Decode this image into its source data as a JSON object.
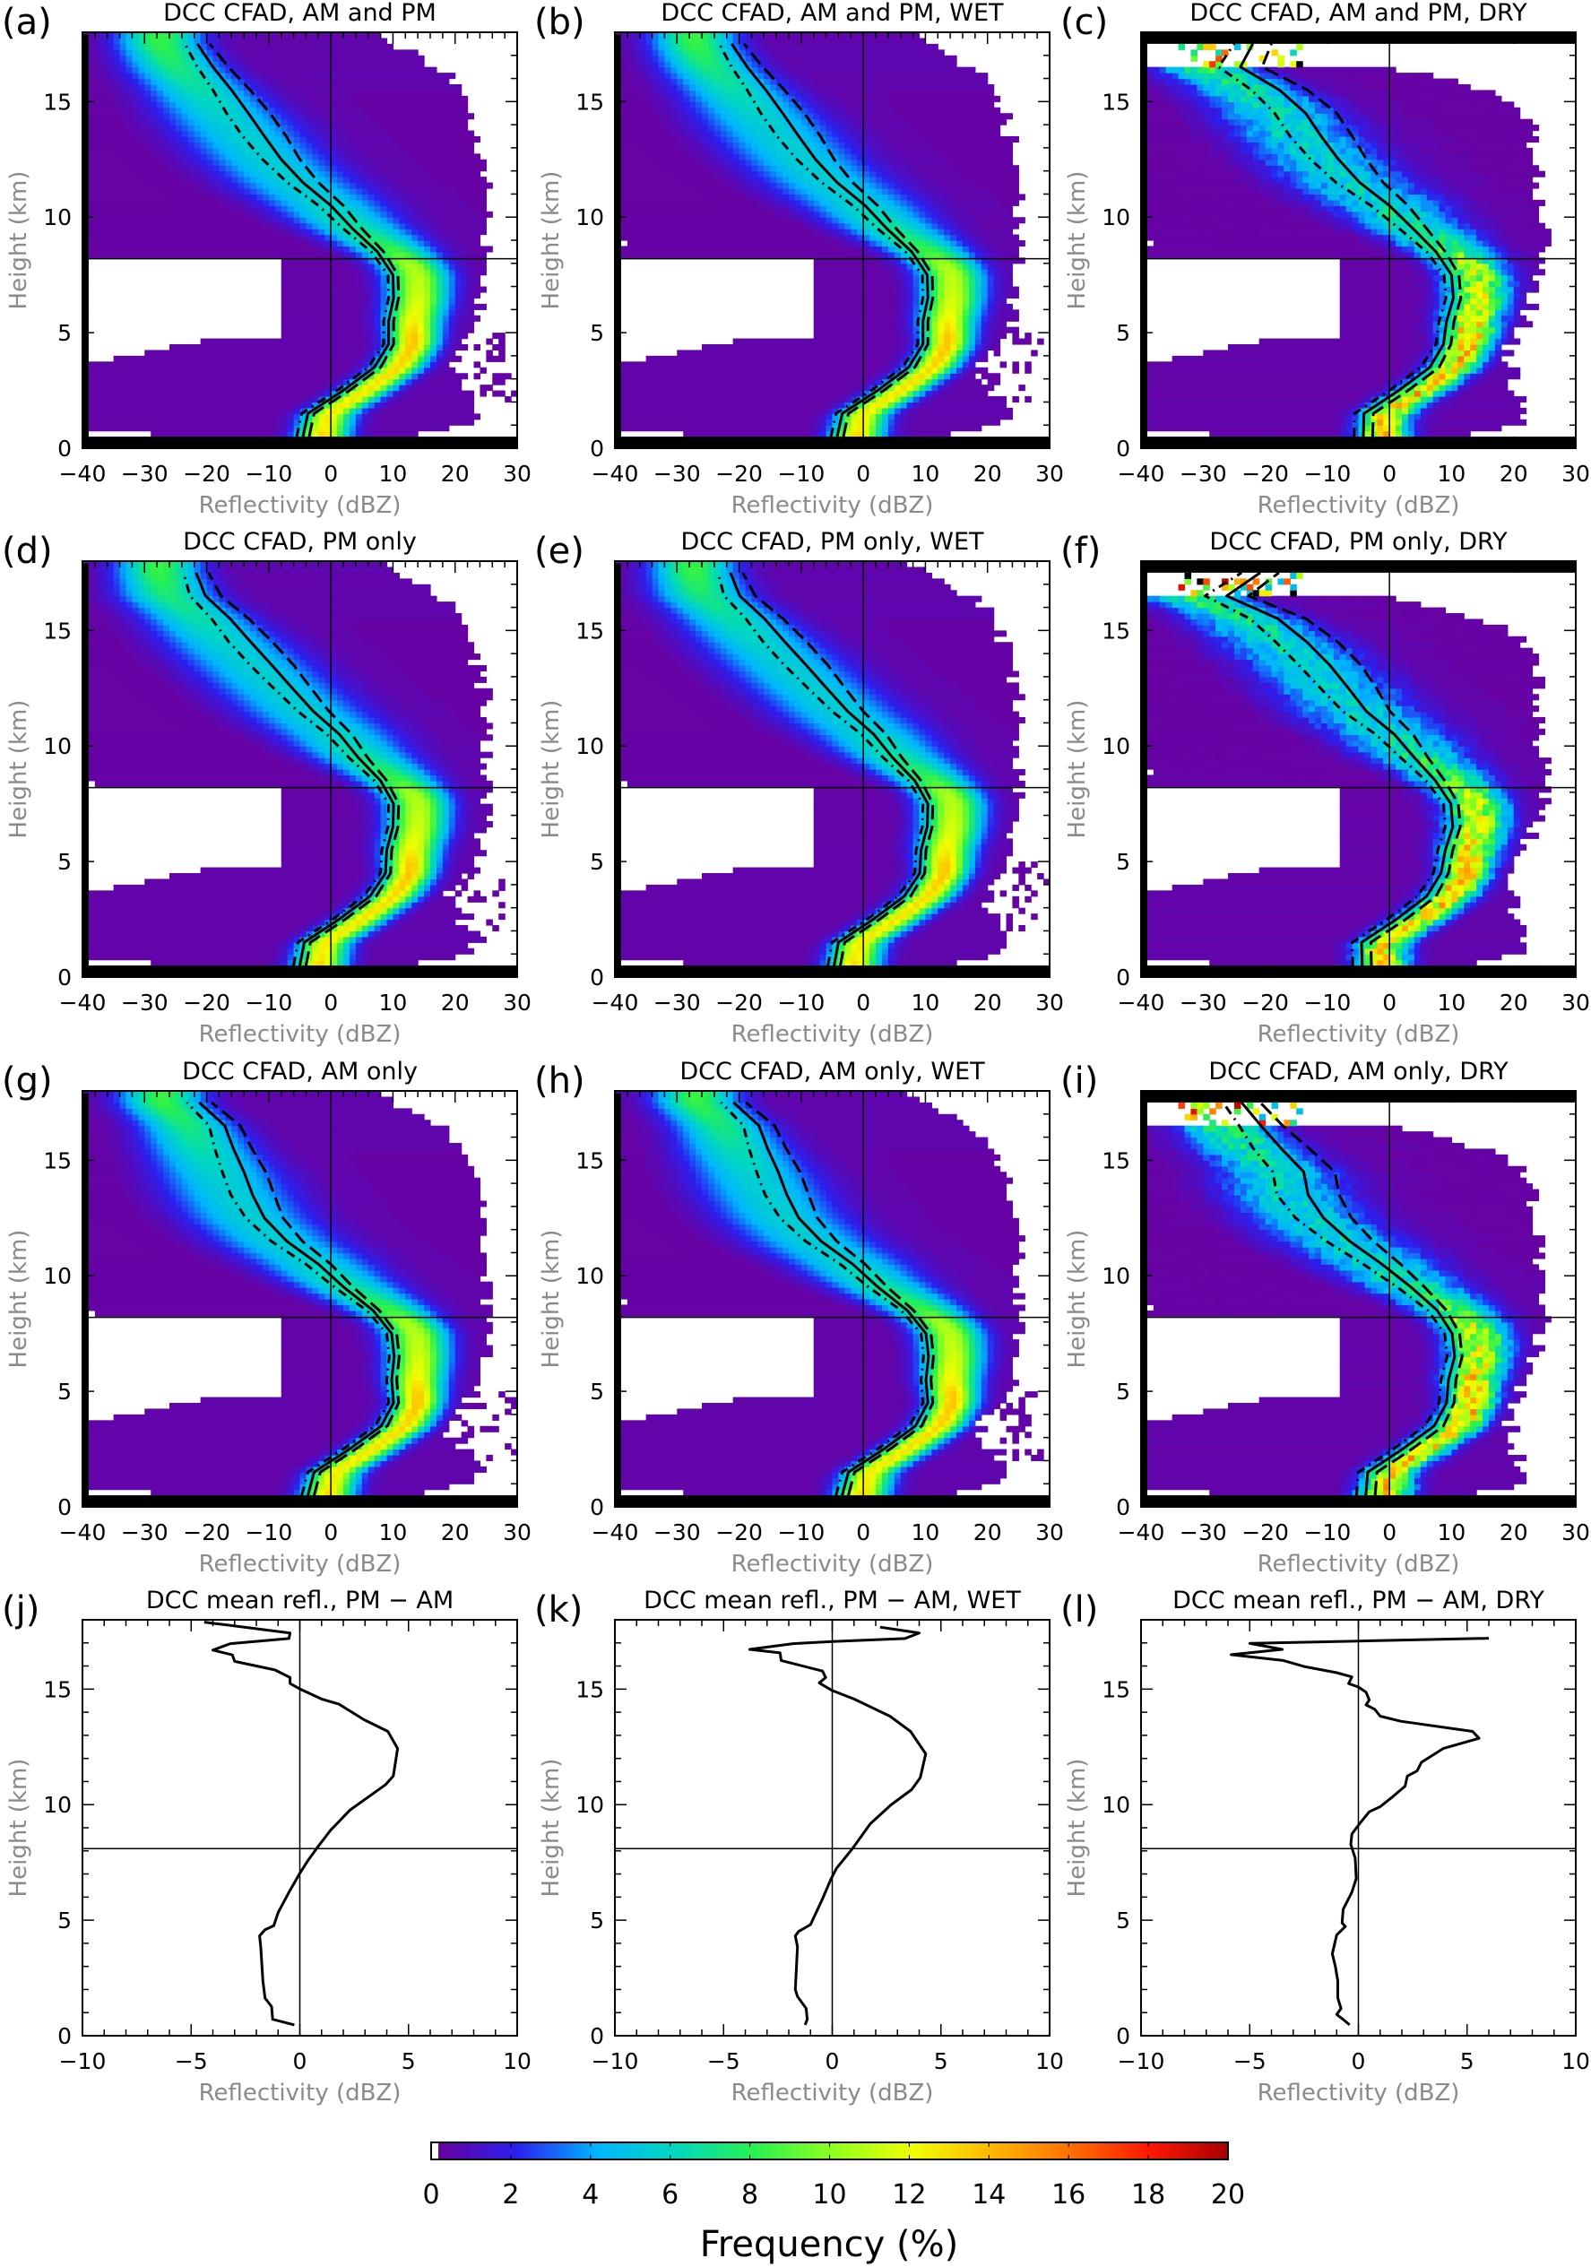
{
  "colorbar": {
    "label": "Frequency (%)",
    "range": [
      0,
      20
    ],
    "ticks": [
      0,
      2,
      4,
      6,
      8,
      10,
      12,
      14,
      16,
      18,
      20
    ],
    "colors": [
      "#6a00a0",
      "#2a20f0",
      "#00b4ff",
      "#00d8c0",
      "#28f050",
      "#90ff20",
      "#f0ff00",
      "#ffb800",
      "#ff7000",
      "#ff1800",
      "#a80000"
    ]
  },
  "chart_data": [
    {
      "id": "a",
      "label": "(a)",
      "type": "heatmap",
      "title": "DCC CFAD, AM and PM",
      "xlabel": "Reflectivity (dBZ)",
      "ylabel": "Height (km)",
      "xlim": [
        -40,
        30
      ],
      "ylim": [
        0,
        18
      ],
      "xticks": [
        -40,
        -30,
        -20,
        -10,
        0,
        10,
        20,
        30
      ],
      "yticks": [
        0,
        5,
        10,
        15
      ],
      "reference_lines": {
        "x": 0,
        "y": 8.2
      },
      "mean_profile": {
        "height_km": [
          0.5,
          1.5,
          2.5,
          3.5,
          4.5,
          5.5,
          6.5,
          7.5,
          8.5,
          9.5,
          10.5,
          11.5,
          12.5,
          13.5,
          14.5,
          15.5,
          16.5,
          17.5
        ],
        "reflectivity_dbz": [
          -4.5,
          -3.7,
          2,
          7,
          9.3,
          9.3,
          10.1,
          10,
          7.5,
          3.5,
          0,
          -4.5,
          -8,
          -10.7,
          -13.3,
          -16,
          -19,
          -21.5
        ]
      },
      "bound_halfwidth_dbz": [
        1,
        1,
        1,
        1,
        0.8,
        0.8,
        0.8,
        0.8,
        1,
        1.5,
        2,
        2.5,
        3,
        3.5,
        3.5,
        3,
        2.5,
        2
      ]
    },
    {
      "id": "b",
      "label": "(b)",
      "type": "heatmap",
      "title": "DCC CFAD, AM and PM, WET",
      "xlabel": "Reflectivity (dBZ)",
      "ylabel": "Height (km)",
      "xlim": [
        -40,
        30
      ],
      "ylim": [
        0,
        18
      ],
      "xticks": [
        -40,
        -30,
        -20,
        -10,
        0,
        10,
        20,
        30
      ],
      "yticks": [
        0,
        5,
        10,
        15
      ],
      "reference_lines": {
        "x": 0,
        "y": 8.2
      },
      "mean_profile": {
        "height_km": [
          0.5,
          1.5,
          2.5,
          3.5,
          4.5,
          5.5,
          6.5,
          7.5,
          8.5,
          9.5,
          10.5,
          11.5,
          12.5,
          13.5,
          14.5,
          15.5,
          16.5,
          17.5
        ],
        "reflectivity_dbz": [
          -4.2,
          -3.4,
          2.3,
          7.3,
          9.6,
          9.6,
          10.4,
          10.3,
          7.8,
          3.8,
          0.3,
          -4.2,
          -7.7,
          -10.4,
          -13.0,
          -15.7,
          -18.7,
          -21.2
        ]
      },
      "bound_halfwidth_dbz": [
        1,
        1,
        1,
        1,
        0.8,
        0.8,
        0.8,
        0.8,
        1,
        1.5,
        2,
        2.5,
        3,
        3.5,
        3.5,
        3,
        2.5,
        2
      ]
    },
    {
      "id": "c",
      "label": "(c)",
      "type": "heatmap",
      "title": "DCC CFAD, AM and PM, DRY",
      "xlabel": "Reflectivity (dBZ)",
      "ylabel": "Height (km)",
      "xlim": [
        -40,
        30
      ],
      "ylim": [
        0,
        18
      ],
      "xticks": [
        -40,
        -30,
        -20,
        -10,
        0,
        10,
        20,
        30
      ],
      "yticks": [
        0,
        5,
        10,
        15
      ],
      "reference_lines": {
        "x": 0,
        "y": 8.2
      },
      "mean_profile": {
        "height_km": [
          0.5,
          1.5,
          2.5,
          3.5,
          4.5,
          5.5,
          6.5,
          7.5,
          8.5,
          9.5,
          10.5,
          11.5,
          12.5,
          13.5,
          14.5,
          15.5,
          16.5,
          17.5
        ],
        "reflectivity_dbz": [
          -4.2,
          -4.1,
          1.5,
          6.5,
          8.7,
          9.2,
          10.3,
          10,
          7.5,
          3.8,
          0,
          -4.8,
          -8.2,
          -11,
          -13.5,
          -17.7,
          -24,
          -22
        ]
      },
      "bound_halfwidth_dbz": [
        1.5,
        1.5,
        1.5,
        1.5,
        1.2,
        1.2,
        1.2,
        1.2,
        1.5,
        2.2,
        3,
        3.8,
        4.5,
        5,
        5,
        4.5,
        3.5,
        3
      ]
    },
    {
      "id": "d",
      "label": "(d)",
      "type": "heatmap",
      "title": "DCC CFAD, PM only",
      "xlabel": "Reflectivity (dBZ)",
      "ylabel": "Height (km)",
      "xlim": [
        -40,
        30
      ],
      "ylim": [
        0,
        18
      ],
      "xticks": [
        -40,
        -30,
        -20,
        -10,
        0,
        10,
        20,
        30
      ],
      "yticks": [
        0,
        5,
        10,
        15
      ],
      "reference_lines": {
        "x": 0,
        "y": 8.2
      },
      "mean_profile": {
        "height_km": [
          0.5,
          1.5,
          2.5,
          3.5,
          4.5,
          5.5,
          6.5,
          7.5,
          8.5,
          9.5,
          10.5,
          11.5,
          12.5,
          13.5,
          14.5,
          15.5,
          16.5,
          17.5
        ],
        "reflectivity_dbz": [
          -5.0,
          -4.3,
          1.3,
          6.3,
          8.8,
          9.0,
          10.0,
          10.1,
          8.0,
          4.4,
          1.4,
          -2.8,
          -6.2,
          -9.5,
          -12.9,
          -16.2,
          -20.2,
          -21.7
        ]
      },
      "bound_halfwidth_dbz": [
        1,
        1,
        1,
        1,
        0.8,
        0.8,
        0.8,
        0.8,
        1,
        1.5,
        2,
        2.5,
        3,
        3.5,
        3.5,
        3,
        2.5,
        2
      ]
    },
    {
      "id": "e",
      "label": "(e)",
      "type": "heatmap",
      "title": "DCC CFAD, PM only, WET",
      "xlabel": "Reflectivity (dBZ)",
      "ylabel": "Height (km)",
      "xlim": [
        -40,
        30
      ],
      "ylim": [
        0,
        18
      ],
      "xticks": [
        -40,
        -30,
        -20,
        -10,
        0,
        10,
        20,
        30
      ],
      "yticks": [
        0,
        5,
        10,
        15
      ],
      "reference_lines": {
        "x": 0,
        "y": 8.2
      },
      "mean_profile": {
        "height_km": [
          0.5,
          1.5,
          2.5,
          3.5,
          4.5,
          5.5,
          6.5,
          7.5,
          8.5,
          9.5,
          10.5,
          11.5,
          12.5,
          13.5,
          14.5,
          15.5,
          16.5,
          17.5
        ],
        "reflectivity_dbz": [
          -4.7,
          -4.0,
          1.6,
          6.6,
          9.1,
          9.3,
          10.3,
          10.4,
          8.3,
          4.7,
          1.7,
          -2.5,
          -5.9,
          -9.2,
          -12.6,
          -15.9,
          -19.9,
          -21.4
        ]
      },
      "bound_halfwidth_dbz": [
        1,
        1,
        1,
        1,
        0.8,
        0.8,
        0.8,
        0.8,
        1,
        1.5,
        2,
        2.5,
        3,
        3.5,
        3.5,
        3,
        2.5,
        2
      ]
    },
    {
      "id": "f",
      "label": "(f)",
      "type": "heatmap",
      "title": "DCC CFAD, PM only, DRY",
      "xlabel": "Reflectivity (dBZ)",
      "ylabel": "Height (km)",
      "xlim": [
        -40,
        30
      ],
      "ylim": [
        0,
        18
      ],
      "xticks": [
        -40,
        -30,
        -20,
        -10,
        0,
        10,
        20,
        30
      ],
      "yticks": [
        0,
        5,
        10,
        15
      ],
      "reference_lines": {
        "x": 0,
        "y": 8.2
      },
      "mean_profile": {
        "height_km": [
          0.5,
          1.5,
          2.5,
          3.5,
          4.5,
          5.5,
          6.5,
          7.5,
          8.5,
          9.5,
          10.5,
          11.5,
          12.5,
          13.5,
          14.5,
          15.5,
          16.5,
          17.5
        ],
        "reflectivity_dbz": [
          -4.4,
          -4.5,
          1.1,
          6.0,
          8.3,
          9.0,
          10.2,
          9.9,
          7.4,
          4.0,
          0.8,
          -3.7,
          -6.6,
          -9.6,
          -13.3,
          -17.9,
          -26.2,
          -20.8
        ]
      },
      "bound_halfwidth_dbz": [
        1.5,
        1.5,
        1.5,
        1.5,
        1.2,
        1.2,
        1.2,
        1.2,
        1.5,
        2.2,
        3,
        3.8,
        4.5,
        5,
        5,
        4.5,
        3.5,
        3
      ]
    },
    {
      "id": "g",
      "label": "(g)",
      "type": "heatmap",
      "title": "DCC CFAD, AM only",
      "xlabel": "Reflectivity (dBZ)",
      "ylabel": "Height (km)",
      "xlim": [
        -40,
        30
      ],
      "ylim": [
        0,
        18
      ],
      "xticks": [
        -40,
        -30,
        -20,
        -10,
        0,
        10,
        20,
        30
      ],
      "yticks": [
        0,
        5,
        10,
        15
      ],
      "reference_lines": {
        "x": 0,
        "y": 8.2
      },
      "mean_profile": {
        "height_km": [
          0.5,
          1.5,
          2.5,
          3.5,
          4.5,
          5.5,
          6.5,
          7.5,
          8.5,
          9.5,
          10.5,
          11.5,
          12.5,
          13.5,
          14.5,
          15.5,
          16.5,
          17.5
        ],
        "reflectivity_dbz": [
          -3.7,
          -2.7,
          3.0,
          8.1,
          10.1,
          9.8,
          10.2,
          9.8,
          6.8,
          2.1,
          -2.0,
          -7.1,
          -10.7,
          -12.6,
          -14.0,
          -15.7,
          -17.1,
          -21.2
        ]
      },
      "bound_halfwidth_dbz": [
        1,
        1,
        1,
        1,
        0.8,
        0.8,
        0.8,
        0.8,
        1,
        1.5,
        2,
        2.5,
        3,
        3.5,
        3.5,
        3,
        2.5,
        2
      ]
    },
    {
      "id": "h",
      "label": "(h)",
      "type": "heatmap",
      "title": "DCC CFAD, AM only, WET",
      "xlabel": "Reflectivity (dBZ)",
      "ylabel": "Height (km)",
      "xlim": [
        -40,
        30
      ],
      "ylim": [
        0,
        18
      ],
      "xticks": [
        -40,
        -30,
        -20,
        -10,
        0,
        10,
        20,
        30
      ],
      "yticks": [
        0,
        5,
        10,
        15
      ],
      "reference_lines": {
        "x": 0,
        "y": 8.2
      },
      "mean_profile": {
        "height_km": [
          0.5,
          1.5,
          2.5,
          3.5,
          4.5,
          5.5,
          6.5,
          7.5,
          8.5,
          9.5,
          10.5,
          11.5,
          12.5,
          13.5,
          14.5,
          15.5,
          16.5,
          17.5
        ],
        "reflectivity_dbz": [
          -3.4,
          -2.4,
          3.3,
          8.4,
          10.4,
          10.1,
          10.5,
          10.1,
          7.1,
          2.4,
          -1.7,
          -6.8,
          -10.4,
          -12.3,
          -13.7,
          -15.4,
          -16.8,
          -20.9
        ]
      },
      "bound_halfwidth_dbz": [
        1,
        1,
        1,
        1,
        0.8,
        0.8,
        0.8,
        0.8,
        1,
        1.5,
        2,
        2.5,
        3,
        3.5,
        3.5,
        3,
        2.5,
        2
      ]
    },
    {
      "id": "i",
      "label": "(i)",
      "type": "heatmap",
      "title": "DCC CFAD, AM only, DRY",
      "xlabel": "Reflectivity (dBZ)",
      "ylabel": "Height (km)",
      "xlim": [
        -40,
        30
      ],
      "ylim": [
        0,
        18
      ],
      "xticks": [
        -40,
        -30,
        -20,
        -10,
        0,
        10,
        20,
        30
      ],
      "yticks": [
        0,
        5,
        10,
        15
      ],
      "reference_lines": {
        "x": 0,
        "y": 8.2
      },
      "mean_profile": {
        "height_km": [
          0.5,
          1.5,
          2.5,
          3.5,
          4.5,
          5.5,
          6.5,
          7.5,
          8.5,
          9.5,
          10.5,
          11.5,
          12.5,
          13.5,
          14.5,
          15.5,
          16.5,
          17.5
        ],
        "reflectivity_dbz": [
          -3.8,
          -3.5,
          2.1,
          7.2,
          9.2,
          9.5,
          10.5,
          10.1,
          7.7,
          3.5,
          -1.2,
          -6.4,
          -10.6,
          -13.1,
          -13.8,
          -17.4,
          -20.7,
          -23.8
        ]
      },
      "bound_halfwidth_dbz": [
        1.5,
        1.5,
        1.5,
        1.5,
        1.2,
        1.2,
        1.2,
        1.2,
        1.5,
        2.2,
        3,
        3.8,
        4.5,
        5,
        5,
        4.5,
        3.5,
        3
      ]
    },
    {
      "id": "j",
      "label": "(j)",
      "type": "line",
      "title": "DCC mean refl., PM − AM",
      "xlabel": "Reflectivity (dBZ)",
      "ylabel": "Height (km)",
      "xlim": [
        -10,
        10
      ],
      "ylim": [
        0,
        18
      ],
      "xticks": [
        -10,
        -5,
        0,
        5,
        10
      ],
      "yticks": [
        0,
        5,
        10,
        15
      ],
      "reference_lines": {
        "x": 0,
        "y": 8.1
      },
      "profile": {
        "height_km": [
          0.47,
          0.71,
          1.26,
          1.63,
          2.37,
          3.85,
          4.32,
          4.59,
          4.76,
          5.33,
          6.21,
          7.03,
          7.62,
          8.14,
          8.88,
          9.76,
          10.5,
          10.87,
          11.24,
          12.43,
          13.17,
          13.68,
          14.35,
          14.57,
          15.01,
          15.24,
          15.5,
          15.83,
          16.2,
          16.48,
          16.69,
          16.97,
          17.19,
          17.43,
          17.9
        ],
        "reflectivity_dbz": [
          -0.25,
          -1.25,
          -1.3,
          -1.6,
          -1.7,
          -1.8,
          -1.85,
          -1.6,
          -1.2,
          -1.0,
          -0.5,
          0,
          0.4,
          0.8,
          1.4,
          2.3,
          3.4,
          3.95,
          4.3,
          4.5,
          4.05,
          2.95,
          1.8,
          1.0,
          0,
          -0.45,
          -0.45,
          -1.15,
          -3.0,
          -3.1,
          -4.0,
          -3.2,
          -0.5,
          -0.45,
          -4.4
        ]
      }
    },
    {
      "id": "k",
      "label": "(k)",
      "type": "line",
      "title": "DCC mean refl., PM − AM, WET",
      "xlabel": "Reflectivity (dBZ)",
      "ylabel": "Height (km)",
      "xlim": [
        -10,
        10
      ],
      "ylim": [
        0,
        18
      ],
      "xticks": [
        -10,
        -5,
        0,
        5,
        10
      ],
      "yticks": [
        0,
        5,
        10,
        15
      ],
      "reference_lines": {
        "x": 0,
        "y": 8.1
      },
      "profile": {
        "height_km": [
          0.47,
          0.71,
          1.18,
          1.7,
          2.0,
          3.85,
          4.32,
          4.51,
          4.81,
          5.92,
          6.8,
          7.25,
          8.06,
          9.17,
          9.99,
          10.65,
          11.17,
          12.2,
          13.17,
          13.83,
          14.57,
          14.94,
          15.27,
          15.5,
          15.78,
          16.24,
          16.57,
          16.72,
          16.97,
          17.06,
          17.19,
          17.43,
          17.68
        ],
        "reflectivity_dbz": [
          -1.25,
          -1.15,
          -1.2,
          -1.6,
          -1.7,
          -1.6,
          -1.7,
          -1.55,
          -1.0,
          -0.45,
          -0.05,
          0.2,
          0.9,
          1.75,
          2.7,
          3.65,
          4.05,
          4.3,
          3.6,
          2.65,
          1.0,
          0,
          -0.6,
          -0.3,
          -0.45,
          -2.35,
          -2.4,
          -3.8,
          -1.8,
          0,
          3.35,
          4.0,
          2.2
        ]
      }
    },
    {
      "id": "l",
      "label": "(l)",
      "type": "line",
      "title": "DCC mean refl., PM − AM, DRY",
      "xlabel": "Reflectivity (dBZ)",
      "ylabel": "Height (km)",
      "xlim": [
        -10,
        10
      ],
      "ylim": [
        0,
        18
      ],
      "xticks": [
        -10,
        -5,
        0,
        5,
        10
      ],
      "yticks": [
        0,
        5,
        10,
        15
      ],
      "reference_lines": {
        "x": 0,
        "y": 8.1
      },
      "profile": {
        "height_km": [
          0.47,
          0.74,
          0.92,
          1.18,
          1.63,
          2.37,
          2.96,
          3.55,
          4.36,
          4.73,
          4.88,
          5.47,
          6.21,
          6.8,
          7.69,
          8.28,
          8.73,
          9.17,
          9.69,
          9.91,
          10.36,
          10.8,
          11.24,
          11.46,
          11.83,
          12.43,
          12.87,
          13.17,
          13.61,
          13.83,
          14.13,
          14.32,
          14.53,
          14.87,
          15.09,
          15.24,
          15.53,
          15.71,
          15.98,
          16.24,
          16.49,
          16.72,
          16.98,
          17.08,
          17.2
        ],
        "reflectivity_dbz": [
          -0.4,
          -0.75,
          -1.0,
          -0.8,
          -0.95,
          -0.95,
          -1.05,
          -1.2,
          -1.0,
          -0.6,
          -0.75,
          -0.7,
          -0.3,
          -0.1,
          -0.15,
          -0.35,
          -0.3,
          0.05,
          0.5,
          1.0,
          1.6,
          2.15,
          2.25,
          2.7,
          2.9,
          3.9,
          5.55,
          5.25,
          1.95,
          1.0,
          0.75,
          0.35,
          0.5,
          0.35,
          0,
          -0.45,
          -0.3,
          -1.0,
          -2.5,
          -3.45,
          -5.85,
          -3.5,
          -5.0,
          0,
          6.0
        ]
      }
    }
  ]
}
